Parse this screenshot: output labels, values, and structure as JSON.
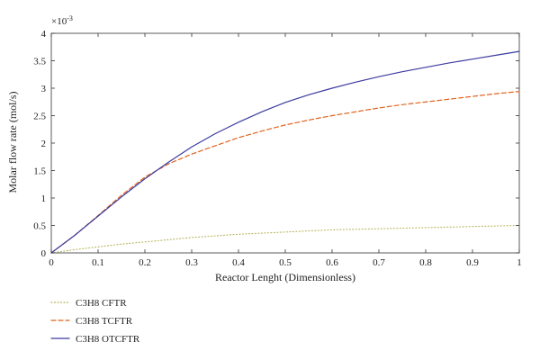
{
  "chart_data": {
    "type": "line",
    "xlabel": "Reactor Lenght (Dimensionless)",
    "ylabel": "Molar flow rate (mol/s)",
    "y_multiplier_base": "×10",
    "y_multiplier_exp": "-3",
    "xlim": [
      0,
      1
    ],
    "ylim": [
      0,
      4
    ],
    "x_ticks": [
      "0",
      "0.1",
      "0.2",
      "0.3",
      "0.4",
      "0.5",
      "0.6",
      "0.7",
      "0.8",
      "0.9",
      "1"
    ],
    "y_ticks": [
      "0",
      "0.5",
      "1",
      "1.5",
      "2",
      "2.5",
      "3",
      "3.5",
      "4"
    ],
    "grid": false,
    "legend_position": "bottom-left, below plot",
    "series": [
      {
        "name": "C3H8 CFTR",
        "color": "#b5b45a",
        "style": "dotted",
        "x": [
          0,
          0.05,
          0.1,
          0.15,
          0.2,
          0.25,
          0.3,
          0.35,
          0.4,
          0.45,
          0.5,
          0.55,
          0.6,
          0.65,
          0.7,
          0.75,
          0.8,
          0.85,
          0.9,
          0.95,
          1.0
        ],
        "y": [
          0,
          0.06,
          0.11,
          0.16,
          0.2,
          0.24,
          0.28,
          0.31,
          0.34,
          0.36,
          0.38,
          0.4,
          0.42,
          0.43,
          0.44,
          0.45,
          0.46,
          0.47,
          0.48,
          0.49,
          0.5
        ]
      },
      {
        "name": "C3H8 TCFTR",
        "color": "#e0621e",
        "style": "dashed",
        "x": [
          0,
          0.05,
          0.1,
          0.15,
          0.2,
          0.25,
          0.3,
          0.35,
          0.4,
          0.45,
          0.5,
          0.55,
          0.6,
          0.65,
          0.7,
          0.75,
          0.8,
          0.85,
          0.9,
          0.95,
          1.0
        ],
        "y": [
          0,
          0.32,
          0.68,
          1.05,
          1.38,
          1.62,
          1.8,
          1.95,
          2.1,
          2.22,
          2.33,
          2.42,
          2.5,
          2.57,
          2.64,
          2.7,
          2.75,
          2.8,
          2.85,
          2.9,
          2.94
        ]
      },
      {
        "name": "C3H8 OTCFTR",
        "color": "#3b3ba0",
        "style": "solid",
        "x": [
          0,
          0.05,
          0.1,
          0.15,
          0.2,
          0.25,
          0.3,
          0.35,
          0.4,
          0.45,
          0.5,
          0.55,
          0.6,
          0.65,
          0.7,
          0.75,
          0.8,
          0.85,
          0.9,
          0.95,
          1.0
        ],
        "y": [
          0,
          0.32,
          0.67,
          1.02,
          1.35,
          1.65,
          1.93,
          2.17,
          2.38,
          2.57,
          2.74,
          2.88,
          3.0,
          3.11,
          3.21,
          3.3,
          3.38,
          3.46,
          3.53,
          3.6,
          3.67
        ]
      }
    ]
  }
}
